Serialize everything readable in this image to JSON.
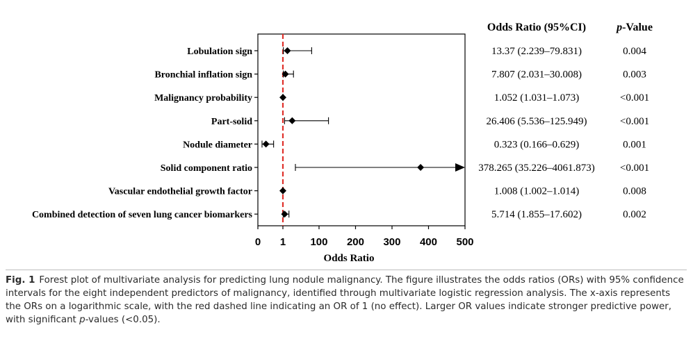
{
  "chart_data": {
    "type": "forest",
    "xlabel": "Odds Ratio",
    "x_ticks": [
      "0",
      "1",
      "100",
      "200",
      "300",
      "400",
      "500"
    ],
    "reference_line": {
      "value": 1,
      "color": "#e0312b",
      "style": "dashed"
    },
    "column_headers": {
      "or_ci": "Odds Ratio (95%CI)",
      "p_value_italic": "p",
      "p_value_rest": "-Value"
    },
    "rows": [
      {
        "label": "Lobulation sign",
        "or": 13.37,
        "lo": 2.239,
        "hi": 79.831,
        "or_text": "13.37 (2.239–79.831)",
        "p": "0.004",
        "arrow": false
      },
      {
        "label": "Bronchial inflation sign",
        "or": 7.807,
        "lo": 2.031,
        "hi": 30.008,
        "or_text": "7.807 (2.031–30.008)",
        "p": "0.003",
        "arrow": false
      },
      {
        "label": "Malignancy probability",
        "or": 1.052,
        "lo": 1.031,
        "hi": 1.073,
        "or_text": "1.052 (1.031–1.073)",
        "p": "<0.001",
        "arrow": false
      },
      {
        "label": "Part-solid",
        "or": 26.406,
        "lo": 5.536,
        "hi": 125.949,
        "or_text": "26.406 (5.536–125.949)",
        "p": "<0.001",
        "arrow": false
      },
      {
        "label": "Nodule diameter",
        "or": 0.323,
        "lo": 0.166,
        "hi": 0.629,
        "or_text": "0.323 (0.166–0.629)",
        "p": "0.001",
        "arrow": false
      },
      {
        "label": "Solid component ratio",
        "or": 378.265,
        "lo": 35.226,
        "hi": 4061.873,
        "or_text": "378.265 (35.226–4061.873)",
        "p": "<0.001",
        "arrow": true
      },
      {
        "label": "Vascular endothelial growth factor",
        "or": 1.008,
        "lo": 1.002,
        "hi": 1.014,
        "or_text": "1.008 (1.002–1.014)",
        "p": "0.008",
        "arrow": false
      },
      {
        "label": "Combined detection of seven lung cancer biomarkers",
        "or": 5.714,
        "lo": 1.855,
        "hi": 17.602,
        "or_text": "5.714 (1.855–17.602)",
        "p": "0.002",
        "arrow": false
      }
    ]
  },
  "caption": {
    "label": "Fig. 1",
    "text_1": "Forest plot of multivariate analysis for predicting lung nodule malignancy. The figure illustrates the odds ratios (ORs) with 95% confidence intervals for the eight independent predictors of malignancy, identified through multivariate logistic regression analysis. The x-axis represents the ORs on a logarithmic scale, with the red dashed line indicating an OR of 1 (no effect). Larger OR values indicate stronger predictive power, with significant ",
    "p_italic": "p",
    "text_2": "-values (<0.05)."
  }
}
